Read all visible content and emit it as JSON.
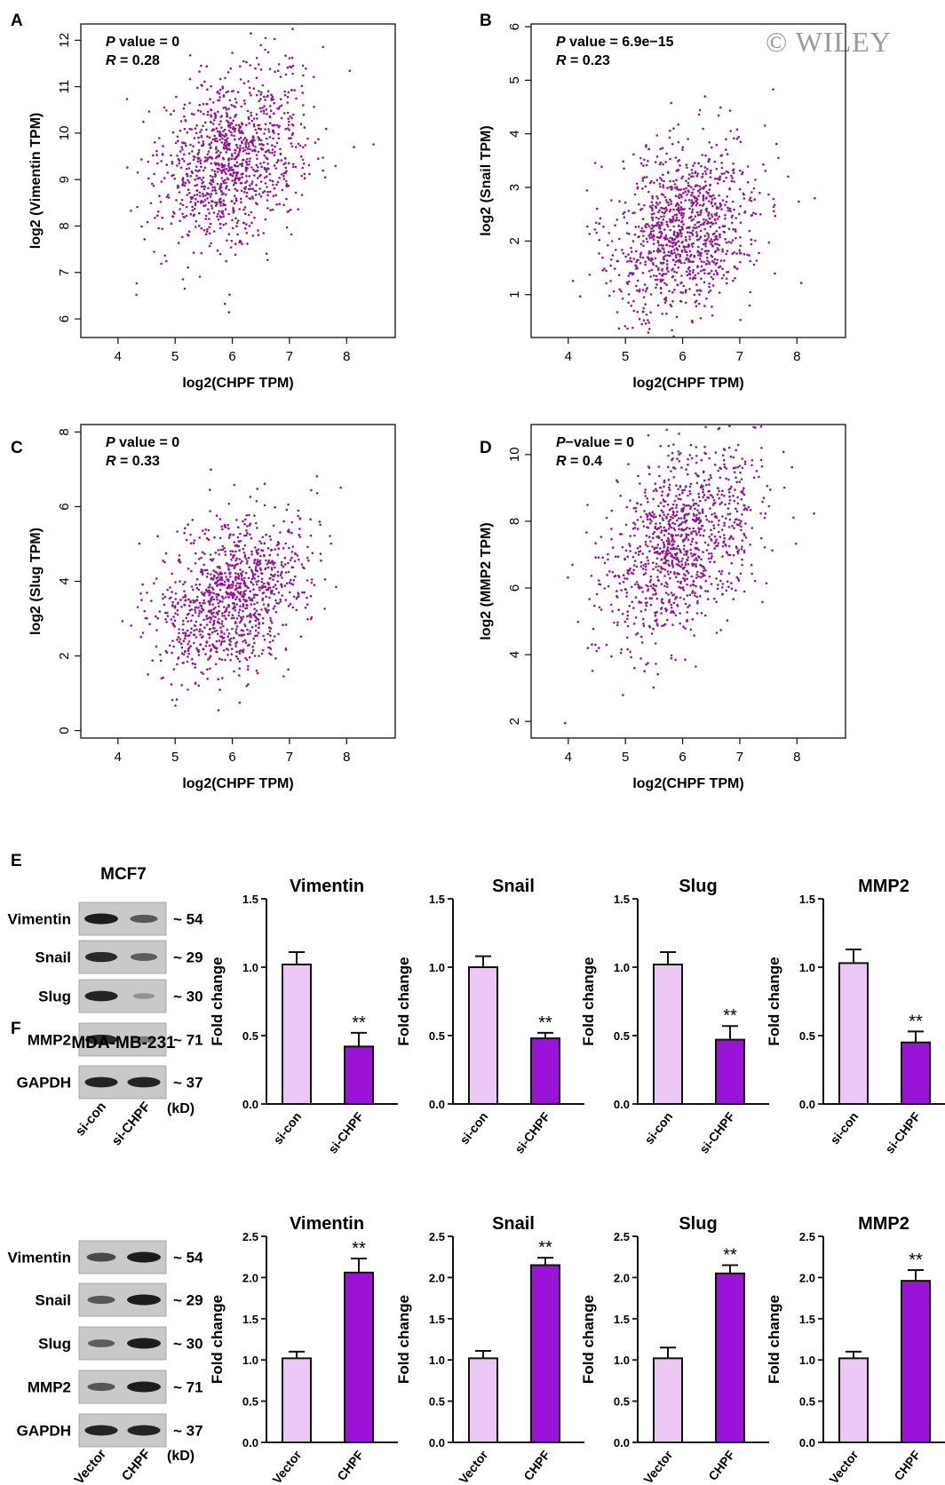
{
  "watermark": "© WILEY",
  "colors": {
    "point": "#93158f",
    "bar_light": "#ecc8f6",
    "bar_dark": "#9a14d8",
    "axis": "#111111",
    "blot_band": "#1c1c1c",
    "blot_bg": "#c9c9c9"
  },
  "scatter_panels": [
    {
      "letter": "A",
      "xlabel": "log2(CHPF TPM)",
      "ylabel": "log2 (Vimentin TPM)",
      "stat1_italic": "P",
      "stat1_rest": " value = 0",
      "stat2_italic": "R",
      "stat2_rest": " = 0.28",
      "xticks": [
        4,
        5,
        6,
        7,
        8
      ],
      "yticks": [
        6,
        7,
        8,
        9,
        10,
        11,
        12
      ],
      "xlim": [
        3.35,
        8.85
      ],
      "ylim": [
        5.6,
        12.35
      ]
    },
    {
      "letter": "B",
      "xlabel": "log2(CHPF TPM)",
      "ylabel": "log2 (Snail TPM)",
      "stat1_italic": "P",
      "stat1_rest": " value = 6.9e−15",
      "stat2_italic": "R",
      "stat2_rest": " = 0.23",
      "xticks": [
        4,
        5,
        6,
        7,
        8
      ],
      "yticks": [
        1,
        2,
        3,
        4,
        5,
        6
      ],
      "xlim": [
        3.35,
        8.85
      ],
      "ylim": [
        0.2,
        6.05
      ]
    },
    {
      "letter": "C",
      "xlabel": "log2(CHPF TPM)",
      "ylabel": "log2 (Slug TPM)",
      "stat1_italic": "P",
      "stat1_rest": " value = 0",
      "stat2_italic": "R",
      "stat2_rest": " = 0.33",
      "xticks": [
        4,
        5,
        6,
        7,
        8
      ],
      "yticks": [
        0,
        2,
        4,
        6,
        8
      ],
      "xlim": [
        3.35,
        8.85
      ],
      "ylim": [
        -0.2,
        8.2
      ]
    },
    {
      "letter": "D",
      "xlabel": "log2(CHPF TPM)",
      "ylabel": "log2 (MMP2 TPM)",
      "stat1_italic": "P",
      "stat1_rest": "−value = 0",
      "stat2_italic": "R",
      "stat2_rest": " = 0.4",
      "xticks": [
        4,
        5,
        6,
        7,
        8
      ],
      "yticks": [
        2,
        4,
        6,
        8,
        10
      ],
      "xlim": [
        3.35,
        8.85
      ],
      "ylim": [
        1.5,
        10.9
      ]
    }
  ],
  "blot_rows": [
    {
      "letter": "E",
      "cell_line": "MCF7",
      "lane_labels": [
        "si-con",
        "si-CHPF"
      ],
      "unit": "(kD)",
      "bands": [
        {
          "protein": "Vimentin",
          "kd": "~ 54",
          "lane1": 1.0,
          "lane2": 0.6
        },
        {
          "protein": "Snail",
          "kd": "~ 29",
          "lane1": 0.9,
          "lane2": 0.55
        },
        {
          "protein": "Slug",
          "kd": "~ 30",
          "lane1": 0.95,
          "lane2": 0.2
        },
        {
          "protein": "MMP2",
          "kd": "~ 71",
          "lane1": 0.9,
          "lane2": 0.35
        },
        {
          "protein": "GAPDH",
          "kd": "~ 37",
          "lane1": 0.95,
          "lane2": 0.95
        }
      ]
    },
    {
      "letter": "F",
      "cell_line": "MDA-MB-231",
      "lane_labels": [
        "Vector",
        "CHPF"
      ],
      "unit": "(kD)",
      "bands": [
        {
          "protein": "Vimentin",
          "kd": "~ 54",
          "lane1": 0.7,
          "lane2": 1.0
        },
        {
          "protein": "Snail",
          "kd": "~ 29",
          "lane1": 0.6,
          "lane2": 1.0
        },
        {
          "protein": "Slug",
          "kd": "~ 30",
          "lane1": 0.55,
          "lane2": 1.0
        },
        {
          "protein": "MMP2",
          "kd": "~ 71",
          "lane1": 0.6,
          "lane2": 1.0
        },
        {
          "protein": "GAPDH",
          "kd": "~ 37",
          "lane1": 0.95,
          "lane2": 0.95
        }
      ]
    }
  ],
  "chart_data": [
    {
      "type": "scatter",
      "panel": "A",
      "xlabel": "log2(CHPF TPM)",
      "ylabel": "log2 (Vimentin TPM)",
      "xlim": [
        3.35,
        8.85
      ],
      "ylim": [
        5.6,
        12.35
      ],
      "p_value": "0",
      "r": 0.28,
      "x_mean": 6.0,
      "x_sd": 0.65,
      "y_mean": 9.4,
      "y_sd": 0.95,
      "n_points": 1085
    },
    {
      "type": "scatter",
      "panel": "B",
      "xlabel": "log2(CHPF TPM)",
      "ylabel": "log2 (Snail TPM)",
      "xlim": [
        3.35,
        8.85
      ],
      "ylim": [
        0.2,
        6.05
      ],
      "p_value": "6.9e−15",
      "r": 0.23,
      "x_mean": 6.0,
      "x_sd": 0.65,
      "y_mean": 2.2,
      "y_sd": 0.8,
      "n_points": 1085
    },
    {
      "type": "scatter",
      "panel": "C",
      "xlabel": "log2(CHPF TPM)",
      "ylabel": "log2 (Slug TPM)",
      "xlim": [
        3.35,
        8.85
      ],
      "ylim": [
        -0.2,
        8.2
      ],
      "p_value": "0",
      "r": 0.33,
      "x_mean": 6.0,
      "x_sd": 0.65,
      "y_mean": 3.6,
      "y_sd": 1.05,
      "n_points": 1085
    },
    {
      "type": "scatter",
      "panel": "D",
      "xlabel": "log2(CHPF TPM)",
      "ylabel": "log2 (MMP2 TPM)",
      "xlim": [
        3.35,
        8.85
      ],
      "ylim": [
        1.5,
        10.9
      ],
      "p_value": "0",
      "r": 0.4,
      "x_mean": 6.0,
      "x_sd": 0.65,
      "y_mean": 7.4,
      "y_sd": 1.5,
      "n_points": 1085
    },
    {
      "type": "bar",
      "panel": "E",
      "title": "Vimentin",
      "categories": [
        "si-con",
        "si-CHPF"
      ],
      "values": [
        1.02,
        0.42
      ],
      "errors": [
        0.09,
        0.1
      ],
      "significance": [
        "",
        "**"
      ],
      "ylabel": "Fold change",
      "ylim": [
        0,
        1.5
      ],
      "yticks": [
        "0.0",
        "0.5",
        "1.0",
        "1.5"
      ]
    },
    {
      "type": "bar",
      "panel": "E",
      "title": "Snail",
      "categories": [
        "si-con",
        "si-CHPF"
      ],
      "values": [
        1.0,
        0.48
      ],
      "errors": [
        0.08,
        0.04
      ],
      "significance": [
        "",
        "**"
      ],
      "ylabel": "Fold change",
      "ylim": [
        0,
        1.5
      ],
      "yticks": [
        "0.0",
        "0.5",
        "1.0",
        "1.5"
      ]
    },
    {
      "type": "bar",
      "panel": "E",
      "title": "Slug",
      "categories": [
        "si-con",
        "si-CHPF"
      ],
      "values": [
        1.02,
        0.47
      ],
      "errors": [
        0.09,
        0.1
      ],
      "significance": [
        "",
        "**"
      ],
      "ylabel": "Fold change",
      "ylim": [
        0,
        1.5
      ],
      "yticks": [
        "0.0",
        "0.5",
        "1.0",
        "1.5"
      ]
    },
    {
      "type": "bar",
      "panel": "E",
      "title": "MMP2",
      "categories": [
        "si-con",
        "si-CHPF"
      ],
      "values": [
        1.03,
        0.45
      ],
      "errors": [
        0.1,
        0.08
      ],
      "significance": [
        "",
        "**"
      ],
      "ylabel": "Fold change",
      "ylim": [
        0,
        1.5
      ],
      "yticks": [
        "0.0",
        "0.5",
        "1.0",
        "1.5"
      ]
    },
    {
      "type": "bar",
      "panel": "F",
      "title": "Vimentin",
      "categories": [
        "Vector",
        "CHPF"
      ],
      "values": [
        1.02,
        2.06
      ],
      "errors": [
        0.08,
        0.17
      ],
      "significance": [
        "",
        "**"
      ],
      "ylabel": "Fold change",
      "ylim": [
        0,
        2.5
      ],
      "yticks": [
        "0.0",
        "0.5",
        "1.0",
        "1.5",
        "2.0",
        "2.5"
      ]
    },
    {
      "type": "bar",
      "panel": "F",
      "title": "Snail",
      "categories": [
        "Vector",
        "CHPF"
      ],
      "values": [
        1.02,
        2.15
      ],
      "errors": [
        0.09,
        0.09
      ],
      "significance": [
        "",
        "**"
      ],
      "ylabel": "Fold change",
      "ylim": [
        0,
        2.5
      ],
      "yticks": [
        "0.0",
        "0.5",
        "1.0",
        "1.5",
        "2.0",
        "2.5"
      ]
    },
    {
      "type": "bar",
      "panel": "F",
      "title": "Slug",
      "categories": [
        "Vector",
        "CHPF"
      ],
      "values": [
        1.02,
        2.05
      ],
      "errors": [
        0.13,
        0.1
      ],
      "significance": [
        "",
        "**"
      ],
      "ylabel": "Fold change",
      "ylim": [
        0,
        2.5
      ],
      "yticks": [
        "0.0",
        "0.5",
        "1.0",
        "1.5",
        "2.0",
        "2.5"
      ]
    },
    {
      "type": "bar",
      "panel": "F",
      "title": "MMP2",
      "categories": [
        "Vector",
        "CHPF"
      ],
      "values": [
        1.02,
        1.96
      ],
      "errors": [
        0.08,
        0.13
      ],
      "significance": [
        "",
        "**"
      ],
      "ylabel": "Fold change",
      "ylim": [
        0,
        2.5
      ],
      "yticks": [
        "0.0",
        "0.5",
        "1.0",
        "1.5",
        "2.0",
        "2.5"
      ]
    }
  ]
}
